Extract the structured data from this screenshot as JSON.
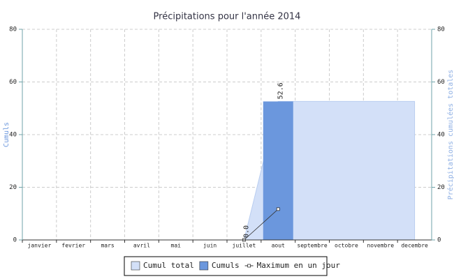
{
  "chart_data": {
    "type": "bar",
    "title": "Précipitations pour l'année 2014",
    "categories": [
      "janvier",
      "fevrier",
      "mars",
      "avril",
      "mai",
      "juin",
      "juillet",
      "aout",
      "septembre",
      "octobre",
      "novembre",
      "decembre"
    ],
    "ylabel": "Cumuls",
    "y2label": "Précipitations cumulées totales",
    "ylim": [
      0,
      80
    ],
    "yticks": [
      0,
      20,
      40,
      60,
      80
    ],
    "y2lim": [
      0,
      80
    ],
    "y2ticks": [
      0,
      20,
      40,
      60,
      80
    ],
    "grid": true,
    "legend": "bottom",
    "series": [
      {
        "name": "Cumul total",
        "type": "area",
        "axis": "y2",
        "color": "#d3e0f8",
        "values": [
          null,
          null,
          null,
          null,
          null,
          null,
          0,
          52.6,
          52.6,
          52.6,
          52.6,
          52.6
        ],
        "value_labels": [
          null,
          null,
          null,
          null,
          null,
          null,
          "0.0",
          "52.6",
          null,
          null,
          null,
          null
        ]
      },
      {
        "name": "Cumuls",
        "type": "bar",
        "color": "#6b97dd",
        "values": [
          null,
          null,
          null,
          null,
          null,
          null,
          null,
          52.6,
          null,
          null,
          null,
          null
        ]
      },
      {
        "name": "Maximum en un jour",
        "type": "line",
        "color": "#333333",
        "values": [
          null,
          null,
          null,
          null,
          null,
          null,
          0,
          11.7,
          null,
          null,
          null,
          null
        ]
      }
    ]
  }
}
